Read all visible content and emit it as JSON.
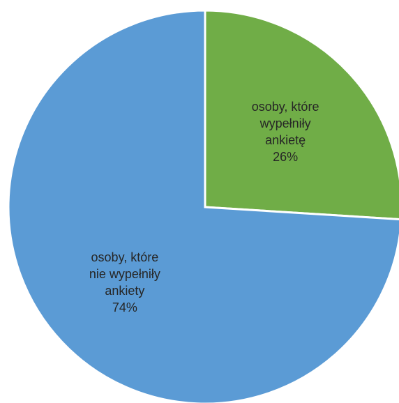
{
  "chart_data": {
    "type": "pie",
    "slices": [
      {
        "label_lines": [
          "osoby, które",
          "wypełniły",
          "ankietę"
        ],
        "value": 26,
        "value_label": "26%",
        "color": "#70AD47"
      },
      {
        "label_lines": [
          "osoby, które",
          "nie wypełniły",
          "ankiety"
        ],
        "value": 74,
        "value_label": "74%",
        "color": "#5B9BD5"
      }
    ],
    "start_angle_deg": 0,
    "direction": "clockwise",
    "legend": "none"
  }
}
